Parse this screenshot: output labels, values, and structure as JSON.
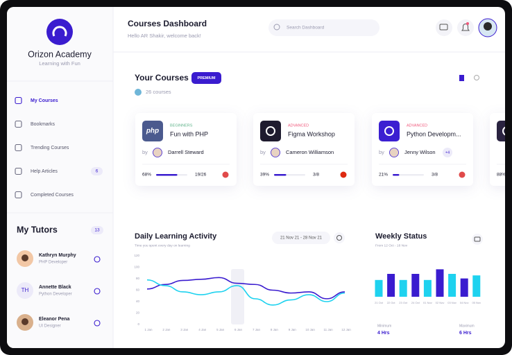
{
  "sidebar": {
    "brand": "Orizon Academy",
    "tagline": "Learning with Fun",
    "nav": [
      {
        "label": "My Courses"
      },
      {
        "label": "Bookmarks"
      },
      {
        "label": "Trending Courses"
      },
      {
        "label": "Help Articles",
        "badge": 6
      },
      {
        "label": "Completed Courses"
      }
    ],
    "tutors_title": "My Tutors",
    "tutors_count": 13,
    "tutors": [
      {
        "name": "Kathryn Murphy",
        "role": "PHP Developer"
      },
      {
        "name": "Annette Black",
        "role": "Python Developer",
        "initials": "TH"
      },
      {
        "name": "Eleanor Pena",
        "role": "UI Designer"
      }
    ]
  },
  "header": {
    "title": "Courses Dashboard",
    "subtitle": "Hello AR Shakir, welcome back!",
    "search_placeholder": "Search Dashboard"
  },
  "courses": {
    "title": "Your Courses",
    "badge": "PREMIUM",
    "count_label": "26 courses",
    "cards": [
      {
        "icon_text": "php",
        "icon_color": "#4b5a8e",
        "level": "BEGINNERS",
        "level_color": "#5fb38a",
        "title": "Fun with PHP",
        "by": "by",
        "author": "Darrell Steward",
        "progress": 68,
        "progress_label": "68%",
        "lessons": "19/26",
        "flag": "#e04a4a"
      },
      {
        "icon_color": "#1e1b2e",
        "level": "ADVANCED",
        "level_color": "#f0567a",
        "title": "Figma Workshop",
        "by": "by",
        "author": "Cameron Williamson",
        "progress": 39,
        "progress_label": "39%",
        "lessons": "3/8",
        "flag": "#de2910"
      },
      {
        "icon_color": "#3b1fd1",
        "level": "ADVANCED",
        "level_color": "#f0567a",
        "title": "Python Developm...",
        "by": "by",
        "author": "Jenny Wilson",
        "extra": "+4",
        "progress": 21,
        "progress_label": "21%",
        "lessons": "3/8",
        "flag": "#e04a4a"
      },
      {
        "icon_color": "#2a2340",
        "progress": 88,
        "progress_label": "88%"
      }
    ]
  },
  "activity": {
    "type": "line",
    "title": "Daily Learning Activity",
    "subtitle": "Time you spent every day on learning",
    "date_range": "21 Nov 21 - 28 Nov 21",
    "categories": [
      "1 Jan",
      "2 Jan",
      "3 Jan",
      "4 Jan",
      "5 Jan",
      "6 Jan",
      "7 Jan",
      "8 Jan",
      "9 Jan",
      "10 Jan",
      "11 Jan",
      "12 Jan"
    ],
    "series": [
      {
        "name": "Purple",
        "color": "#3a1ccf",
        "values": [
          62,
          70,
          77,
          79,
          82,
          72,
          70,
          60,
          55,
          57,
          45,
          57
        ]
      },
      {
        "name": "Cyan",
        "color": "#1ed2ef",
        "values": [
          78,
          68,
          57,
          52,
          57,
          68,
          45,
          34,
          43,
          52,
          40,
          55
        ]
      }
    ],
    "ylim": [
      0,
      120
    ],
    "yticks": [
      0,
      20,
      40,
      60,
      80,
      100,
      120
    ],
    "grid": false
  },
  "weekly": {
    "type": "bar",
    "title": "Weekly Status",
    "subtitle": "From 12 Oct - 18 Nov",
    "categories": [
      "21 Oct",
      "22 Oct",
      "23 Oct",
      "24 Oct",
      "01 Nov",
      "02 Nov",
      "03 Nov",
      "04 Nov",
      "05 Nov"
    ],
    "values": [
      55,
      75,
      55,
      75,
      55,
      90,
      75,
      60,
      70
    ],
    "colors": [
      "#1ed2ef",
      "#3a1ccf",
      "#1ed2ef",
      "#3a1ccf",
      "#1ed2ef",
      "#3a1ccf",
      "#1ed2ef",
      "#3a1ccf",
      "#1ed2ef"
    ],
    "ylim": [
      0,
      100
    ],
    "min_label": "Minimum",
    "min_value": "4 Hrs",
    "max_label": "Maximum",
    "max_value": "6 Hrs"
  }
}
